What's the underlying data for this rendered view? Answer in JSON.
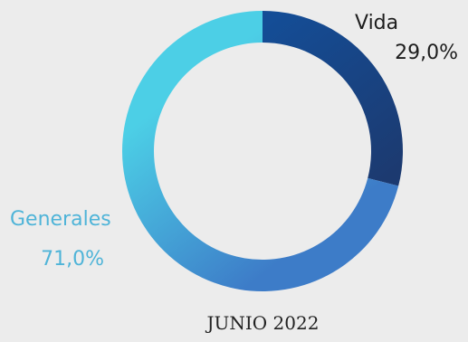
{
  "chart_data": {
    "type": "pie",
    "categories": [
      "Vida",
      "Generales"
    ],
    "values": [
      29.0,
      71.0
    ],
    "value_labels": [
      "29,0%",
      "71,0%"
    ],
    "caption": "JUNIO 2022",
    "donut": true,
    "colors": {
      "Vida": [
        "#144d96",
        "#1c3a70"
      ],
      "Generales": [
        "#3d7cc8",
        "#4ccfe6"
      ]
    },
    "label_colors": {
      "Vida": "#1d1d1d",
      "Generales": "#4fb4d8"
    }
  }
}
